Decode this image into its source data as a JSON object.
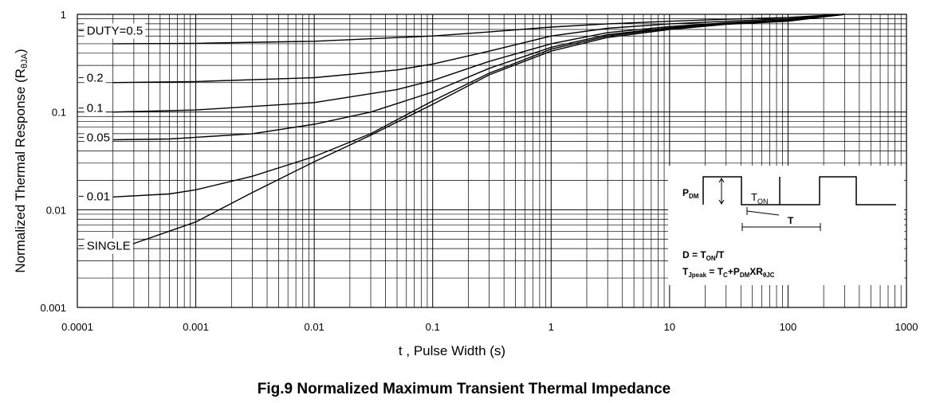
{
  "caption": "Fig.9 Normalized Maximum Transient Thermal Impedance",
  "chart_data": {
    "type": "line",
    "title": "",
    "xlabel": "t , Pulse Width (s)",
    "ylabel_main": "Normalized Thermal Response (R",
    "ylabel_sub": "θJA",
    "ylabel_close": ")",
    "xscale": "log",
    "yscale": "log",
    "xlim": [
      0.0001,
      1000
    ],
    "ylim": [
      0.001,
      1
    ],
    "grid": true,
    "x_ticks": [
      {
        "value": 0.0001,
        "label": "0.0001"
      },
      {
        "value": 0.001,
        "label": "0.001"
      },
      {
        "value": 0.01,
        "label": "0.01"
      },
      {
        "value": 0.1,
        "label": "0.1"
      },
      {
        "value": 1,
        "label": "1"
      },
      {
        "value": 10,
        "label": "10"
      },
      {
        "value": 100,
        "label": "100"
      },
      {
        "value": 1000,
        "label": "1000"
      }
    ],
    "y_ticks": [
      {
        "value": 1,
        "label": "1"
      },
      {
        "value": 0.1,
        "label": "0.1"
      },
      {
        "value": 0.01,
        "label": "0.01"
      },
      {
        "value": 0.001,
        "label": "0.001"
      }
    ],
    "series": [
      {
        "name": "DUTY=0.5",
        "label_at": [
          0.00012,
          0.62
        ],
        "points": [
          [
            0.0002,
            0.5
          ],
          [
            0.001,
            0.505
          ],
          [
            0.01,
            0.53
          ],
          [
            0.1,
            0.6
          ],
          [
            0.3,
            0.66
          ],
          [
            1,
            0.74
          ],
          [
            3,
            0.8
          ],
          [
            10,
            0.85
          ],
          [
            30,
            0.89
          ],
          [
            100,
            0.93
          ],
          [
            300,
            1.0
          ]
        ]
      },
      {
        "name": "0.2",
        "label_at": [
          0.00012,
          0.205
        ],
        "points": [
          [
            0.0002,
            0.2
          ],
          [
            0.001,
            0.205
          ],
          [
            0.01,
            0.225
          ],
          [
            0.05,
            0.27
          ],
          [
            0.1,
            0.31
          ],
          [
            0.3,
            0.42
          ],
          [
            1,
            0.6
          ],
          [
            3,
            0.72
          ],
          [
            10,
            0.8
          ],
          [
            30,
            0.85
          ],
          [
            100,
            0.9
          ],
          [
            300,
            1.0
          ]
        ]
      },
      {
        "name": "0.1",
        "label_at": [
          0.00012,
          0.1
        ],
        "points": [
          [
            0.0002,
            0.1
          ],
          [
            0.001,
            0.105
          ],
          [
            0.01,
            0.125
          ],
          [
            0.05,
            0.17
          ],
          [
            0.1,
            0.21
          ],
          [
            0.3,
            0.33
          ],
          [
            1,
            0.5
          ],
          [
            3,
            0.65
          ],
          [
            10,
            0.75
          ],
          [
            30,
            0.82
          ],
          [
            100,
            0.88
          ],
          [
            300,
            1.0
          ]
        ]
      },
      {
        "name": "0.05",
        "label_at": [
          0.00012,
          0.05
        ],
        "points": [
          [
            0.0002,
            0.052
          ],
          [
            0.0006,
            0.053
          ],
          [
            0.003,
            0.06
          ],
          [
            0.01,
            0.075
          ],
          [
            0.03,
            0.1
          ],
          [
            0.1,
            0.16
          ],
          [
            0.3,
            0.28
          ],
          [
            1,
            0.46
          ],
          [
            3,
            0.62
          ],
          [
            10,
            0.73
          ],
          [
            30,
            0.81
          ],
          [
            100,
            0.87
          ],
          [
            300,
            1.0
          ]
        ]
      },
      {
        "name": "0.01",
        "label_at": [
          0.00012,
          0.0125
        ],
        "points": [
          [
            0.0002,
            0.0135
          ],
          [
            0.0006,
            0.0145
          ],
          [
            0.001,
            0.016
          ],
          [
            0.003,
            0.022
          ],
          [
            0.01,
            0.035
          ],
          [
            0.03,
            0.06
          ],
          [
            0.1,
            0.13
          ],
          [
            0.3,
            0.25
          ],
          [
            1,
            0.44
          ],
          [
            3,
            0.6
          ],
          [
            10,
            0.72
          ],
          [
            30,
            0.8
          ],
          [
            100,
            0.86
          ],
          [
            300,
            1.0
          ]
        ]
      },
      {
        "name": "SINGLE",
        "label_at": [
          0.00012,
          0.0039
        ],
        "points": [
          [
            0.0002,
            0.0038
          ],
          [
            0.001,
            0.0075
          ],
          [
            0.003,
            0.015
          ],
          [
            0.01,
            0.031
          ],
          [
            0.03,
            0.058
          ],
          [
            0.1,
            0.12
          ],
          [
            0.3,
            0.24
          ],
          [
            1,
            0.42
          ],
          [
            3,
            0.58
          ],
          [
            10,
            0.7
          ],
          [
            30,
            0.79
          ],
          [
            100,
            0.85
          ],
          [
            300,
            1.0
          ]
        ]
      }
    ],
    "inset": {
      "p_dm": "P",
      "p_dm_sub": "DM",
      "t_on": "T",
      "t_on_sub": "ON",
      "t_period": "T",
      "eq1_a": "D = T",
      "eq1_sub": "ON",
      "eq1_b": "/T",
      "eq2_a": "T",
      "eq2_sub1": "Jpeak",
      "eq2_b": " = T",
      "eq2_sub2": "C",
      "eq2_c": "+P",
      "eq2_sub3": "DM",
      "eq2_d": "XR",
      "eq2_sub4": "θJC"
    }
  }
}
